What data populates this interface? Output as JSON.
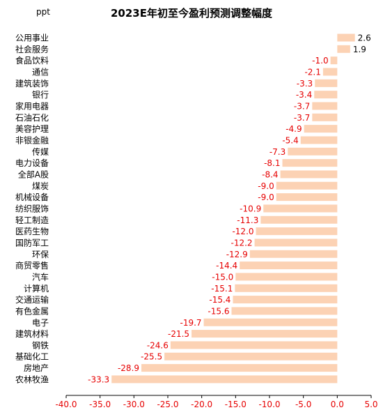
{
  "chart_data": {
    "type": "bar",
    "orientation": "horizontal",
    "title": "2023E年初至今盈利预测调整幅度",
    "unit": "ppt",
    "categories": [
      "公用事业",
      "社会服务",
      "食品饮料",
      "通信",
      "建筑装饰",
      "银行",
      "家用电器",
      "石油石化",
      "美容护理",
      "非银金融",
      "传媒",
      "电力设备",
      "全部A股",
      "煤炭",
      "机械设备",
      "纺织服饰",
      "轻工制造",
      "医药生物",
      "国防军工",
      "环保",
      "商贸零售",
      "汽车",
      "计算机",
      "交通运输",
      "有色金属",
      "电子",
      "建筑材料",
      "钢铁",
      "基础化工",
      "房地产",
      "农林牧渔"
    ],
    "values": [
      2.6,
      1.9,
      -1.0,
      -2.1,
      -3.3,
      -3.4,
      -3.7,
      -3.7,
      -4.9,
      -5.4,
      -7.3,
      -8.1,
      -8.4,
      -9.0,
      -9.0,
      -10.9,
      -11.3,
      -12.0,
      -12.2,
      -12.9,
      -14.4,
      -15.0,
      -15.1,
      -15.4,
      -15.6,
      -19.7,
      -21.5,
      -24.6,
      -25.5,
      -28.9,
      -33.3
    ],
    "value_labels": [
      "2.6",
      "1.9",
      "-1.0",
      "-2.1",
      "-3.3",
      "-3.4",
      "-3.7",
      "-3.7",
      "-4.9",
      "-5.4",
      "-7.3",
      "-8.1",
      "-8.4",
      "-9.0",
      "-9.0",
      "-10.9",
      "-11.3",
      "-12.0",
      "-12.2",
      "-12.9",
      "-14.4",
      "-15.0",
      "-15.1",
      "-15.4",
      "-15.6",
      "-19.7",
      "-21.5",
      "-24.6",
      "-25.5",
      "-28.9",
      "-33.3"
    ],
    "xlim": [
      -40,
      5
    ],
    "x_ticks": [
      "-40.0",
      "-35.0",
      "-30.0",
      "-25.0",
      "-20.0",
      "-15.0",
      "-10.0",
      "-5.0",
      "0.0",
      "5.0"
    ],
    "x_tick_values": [
      -40,
      -35,
      -30,
      -25,
      -20,
      -15,
      -10,
      -5,
      0,
      5
    ],
    "grid": false,
    "legend": "none",
    "colors": {
      "bar": "#fcd2b4",
      "negative_label": "#e60000",
      "positive_label": "#000000",
      "axis_tick_label": "#e60000",
      "category_label": "#000000",
      "axis": "#000000"
    }
  }
}
